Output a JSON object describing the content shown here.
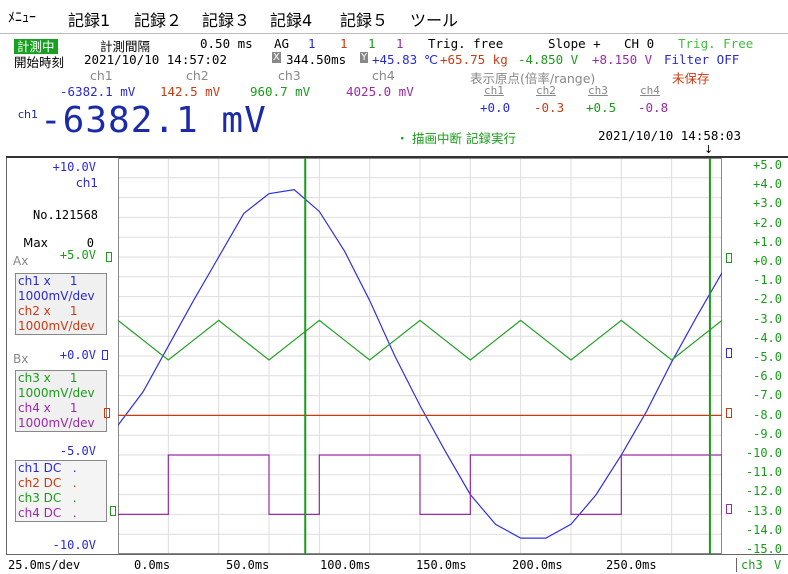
{
  "menu": [
    "ﾒﾆｭｰ",
    "記録1",
    "記録２",
    "記録３",
    "記録4",
    "記録５",
    "ツール"
  ],
  "status": {
    "measuring": "計測中",
    "interval_label": "計測間隔",
    "interval_value": "0.50 ms",
    "ag_label": "AG",
    "ag_values": [
      "1",
      "1",
      "1",
      "1"
    ],
    "trig_label": "Trig. free",
    "slope_label": "Slope +",
    "ch_label": "CH 0",
    "trig_state": "Trig. Free",
    "start_label": "開始時刻",
    "start_value": "2021/10/10 14:57:02",
    "x_cursor": "344.50ms",
    "y_cursor": "+45.83",
    "unit_c": "℃",
    "val2": "+65.75 kg",
    "val3": "-4.850 V",
    "val4": "+8.150 V",
    "filter": "Filter OFF",
    "unsaved": "未保存",
    "origin_label": "表示原点(倍率/range)"
  },
  "channels": [
    {
      "name": "ch1",
      "value": "-6382.1 mV",
      "origin": "+0.0"
    },
    {
      "name": "ch2",
      "value": "142.5 mV",
      "origin": "-0.3"
    },
    {
      "name": "ch3",
      "value": "960.7 mV",
      "origin": "+0.5"
    },
    {
      "name": "ch4",
      "value": "4025.0 mV",
      "origin": "-0.8"
    }
  ],
  "big": {
    "ch": "ch1",
    "value": "-6382.1 mV"
  },
  "action": {
    "bullet": "・",
    "text": "描画中断 記録実行",
    "timestamp": "2021/10/10 14:58:03"
  },
  "left_panel": {
    "top_scale": "+10.0V",
    "top_ch": "ch1",
    "no_label": "No.121568",
    "max_label": "Max",
    "max_value": "0",
    "ax": "Ax",
    "ax_scale": "+5.0V",
    "box1": [
      "ch1 x     1",
      "1000mV/dev",
      "ch2 x     1",
      "1000mV/dev"
    ],
    "bx": "Bx",
    "bx_scale": "+0.0V",
    "box2": [
      "ch3 x     1",
      "1000mV/dev",
      "ch4 x     1",
      "1000mV/dev"
    ],
    "mid_scale": "-5.0V",
    "box3": [
      "ch1 DC   .",
      "ch2 DC   .",
      "ch3 DC   .",
      "ch4 DC   ."
    ],
    "bottom_scale": "-10.0V"
  },
  "right_ticks": [
    "+5.0",
    "+4.0",
    "+3.0",
    "+2.0",
    "+1.0",
    "+0.0",
    "-1.0",
    "-2.0",
    "-3.0",
    "-4.0",
    "-5.0",
    "-6.0",
    "-7.0",
    "-8.0",
    "-9.0",
    "-10.0",
    "-11.0",
    "-12.0",
    "-13.0",
    "-14.0",
    "-15.0"
  ],
  "right_footer": {
    "ch": "ch3",
    "unit": "V"
  },
  "bottom": {
    "timebase": "25.0ms/dev",
    "ticks": [
      "0.0ms",
      "50.0ms",
      "100.0ms",
      "150.0ms",
      "200.0ms",
      "250.0ms"
    ]
  },
  "colors": {
    "ch1": "#3030e0",
    "ch2": "#c83c14",
    "ch3": "#20a020",
    "ch4": "#9a2aa8",
    "cursor": "#1a9c1a"
  },
  "chart_data": {
    "type": "line",
    "xlabel": "",
    "ylabel": "",
    "x": [
      0,
      12.5,
      25,
      37.5,
      50,
      62.5,
      75,
      87.5,
      100,
      112.5,
      125,
      137.5,
      150,
      162.5,
      175,
      187.5,
      200,
      212.5,
      225,
      237.5,
      250,
      262.5,
      275,
      287.5,
      300
    ],
    "xlim": [
      0,
      300
    ],
    "ylim": [
      -10,
      10
    ],
    "series": [
      {
        "name": "ch1",
        "values": [
          -3.5,
          -1.8,
          0.5,
          2.8,
          5.0,
          7.2,
          8.2,
          8.4,
          7.3,
          5.3,
          2.8,
          0.0,
          -2.5,
          -4.8,
          -7.0,
          -8.5,
          -9.2,
          -9.2,
          -8.5,
          -7.0,
          -5.0,
          -2.8,
          -0.3,
          2.0,
          4.2
        ]
      },
      {
        "name": "ch2",
        "values": [
          -3.0,
          -3.0,
          -3.0,
          -3.0,
          -3.0,
          -3.0,
          -3.0,
          -3.0,
          -3.0,
          -3.0,
          -3.0,
          -3.0,
          -3.0,
          -3.0,
          -3.0,
          -3.0,
          -3.0,
          -3.0,
          -3.0,
          -3.0,
          -3.0,
          -3.0,
          -3.0,
          -3.0,
          -3.0
        ]
      },
      {
        "name": "ch3",
        "values": [
          1.8,
          0.8,
          -0.2,
          0.8,
          1.8,
          0.8,
          -0.2,
          0.8,
          1.8,
          0.8,
          -0.2,
          0.8,
          1.8,
          0.8,
          -0.2,
          0.8,
          1.8,
          0.8,
          -0.2,
          0.8,
          1.8,
          0.8,
          -0.2,
          0.8,
          1.8
        ]
      },
      {
        "name": "ch4",
        "values": [
          -8.0,
          -8.0,
          -5.0,
          -5.0,
          -5.0,
          -5.0,
          -8.0,
          -8.0,
          -5.0,
          -5.0,
          -5.0,
          -5.0,
          -8.0,
          -8.0,
          -5.0,
          -5.0,
          -5.0,
          -5.0,
          -8.0,
          -8.0,
          -5.0,
          -5.0,
          -5.0,
          -5.0,
          -8.0
        ]
      }
    ],
    "grid": true
  }
}
